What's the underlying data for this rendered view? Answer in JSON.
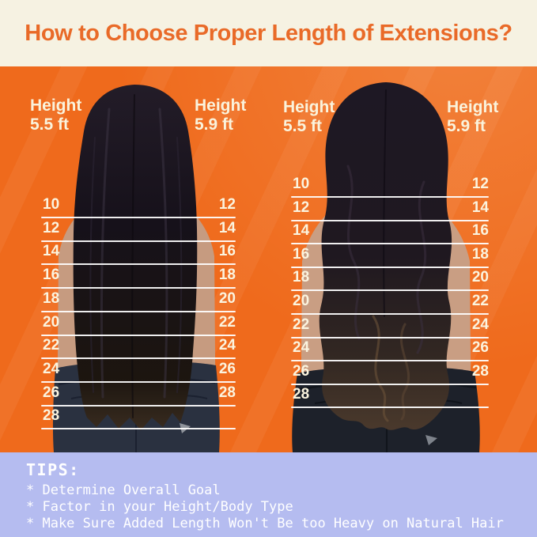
{
  "title": "How to Choose Proper Length of Extensions?",
  "figures": [
    {
      "name": "straight-hair",
      "labels": {
        "left": {
          "line1": "Height",
          "line2": "5.5 ft"
        },
        "right": {
          "line1": "Height",
          "line2": "5.9 ft"
        }
      },
      "rows": [
        {
          "left": "10",
          "right": "12"
        },
        {
          "left": "12",
          "right": "14"
        },
        {
          "left": "14",
          "right": "16"
        },
        {
          "left": "16",
          "right": "18"
        },
        {
          "left": "18",
          "right": "20"
        },
        {
          "left": "20",
          "right": "22"
        },
        {
          "left": "22",
          "right": "24"
        },
        {
          "left": "24",
          "right": "26"
        },
        {
          "left": "26",
          "right": "28"
        },
        {
          "left": "28",
          "right": ""
        }
      ]
    },
    {
      "name": "wavy-hair",
      "labels": {
        "left": {
          "line1": "Height",
          "line2": "5.5 ft"
        },
        "right": {
          "line1": "Height",
          "line2": "5.9 ft"
        }
      },
      "rows": [
        {
          "left": "10",
          "right": "12"
        },
        {
          "left": "12",
          "right": "14"
        },
        {
          "left": "14",
          "right": "16"
        },
        {
          "left": "16",
          "right": "18"
        },
        {
          "left": "18",
          "right": "20"
        },
        {
          "left": "20",
          "right": "22"
        },
        {
          "left": "22",
          "right": "24"
        },
        {
          "left": "24",
          "right": "26"
        },
        {
          "left": "26",
          "right": "28"
        },
        {
          "left": "28",
          "right": ""
        }
      ]
    }
  ],
  "tips": {
    "heading": "TIPS:",
    "items": [
      "* Determine Overall Goal",
      "* Factor in your Height/Body Type",
      "* Make Sure Added Length Won't Be too Heavy on Natural Hair"
    ]
  },
  "colors": {
    "background_orange": "#EF6A1C",
    "header_cream": "#F6F2E2",
    "title_orange": "#E96A28",
    "tips_purple": "#B5BCF0",
    "scale_text_cream": "#FAF3DC"
  }
}
